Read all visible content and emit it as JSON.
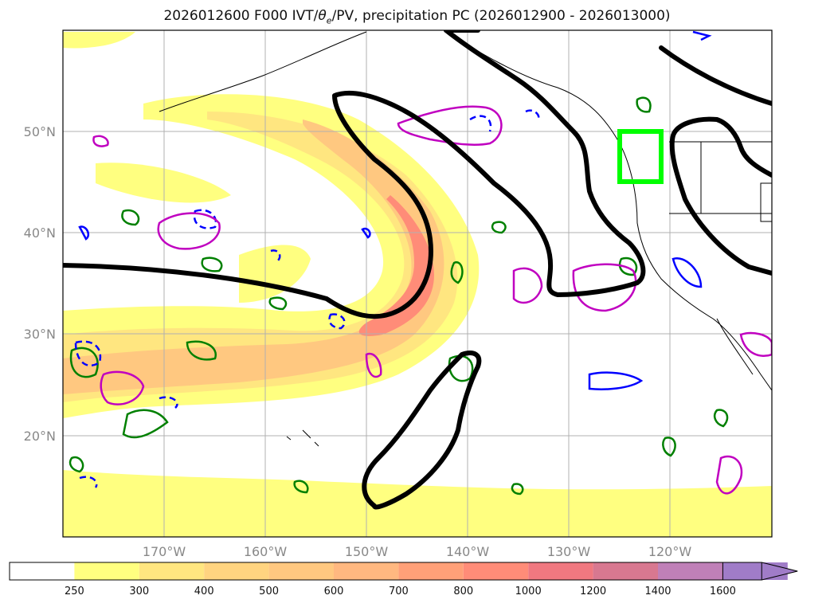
{
  "title_main": "2026012600 F000 IVT/",
  "title_theta": "θ",
  "title_sub": "e",
  "title_rest": "/PV, precipitation PC (2026012900 - 2026013000)",
  "colors": {
    "pv_contour": "#000000",
    "green_contour": "#008000",
    "blue_contour": "#0000ff",
    "magenta_contour": "#c000c0",
    "region_box": "#00ff00",
    "gridline": "#b0b0b0",
    "coastline": "#000000"
  },
  "chart_data": {
    "type": "heatmap",
    "projection": "PlateCarree",
    "lon_range": [
      -180,
      -110
    ],
    "lat_range": [
      10,
      60
    ],
    "lat_ticks": [
      "20°N",
      "30°N",
      "40°N",
      "50°N"
    ],
    "lon_ticks": [
      "170°W",
      "160°W",
      "150°W",
      "140°W",
      "130°W",
      "120°W"
    ],
    "colorbar": {
      "levels": [
        250,
        300,
        400,
        500,
        600,
        700,
        800,
        1000,
        1200,
        1400,
        1600
      ],
      "colors": [
        "#ffff80",
        "#ffe680",
        "#ffd480",
        "#ffc880",
        "#ffb880",
        "#ffa078",
        "#ff8c78",
        "#f07880",
        "#d87890",
        "#c080b8",
        "#a07cc8"
      ],
      "extend": "max"
    }
  }
}
